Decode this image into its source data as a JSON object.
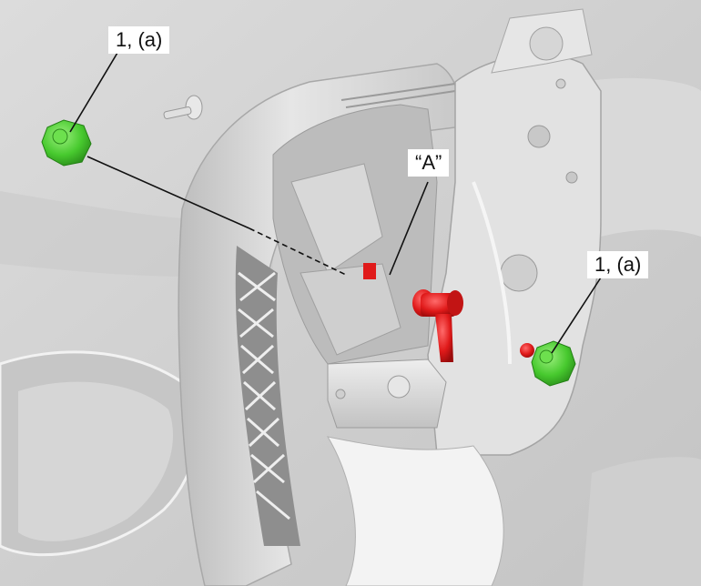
{
  "callouts": {
    "part_left": "1, (a)",
    "part_right": "1, (a)",
    "point_a": "“A”"
  },
  "colors": {
    "background": "#d4d4d4",
    "fastener": "#4fd236",
    "highlight": "#e01a1a"
  },
  "icons": {
    "fastener": "green-nut-icon",
    "location": "red-marker-icon"
  }
}
